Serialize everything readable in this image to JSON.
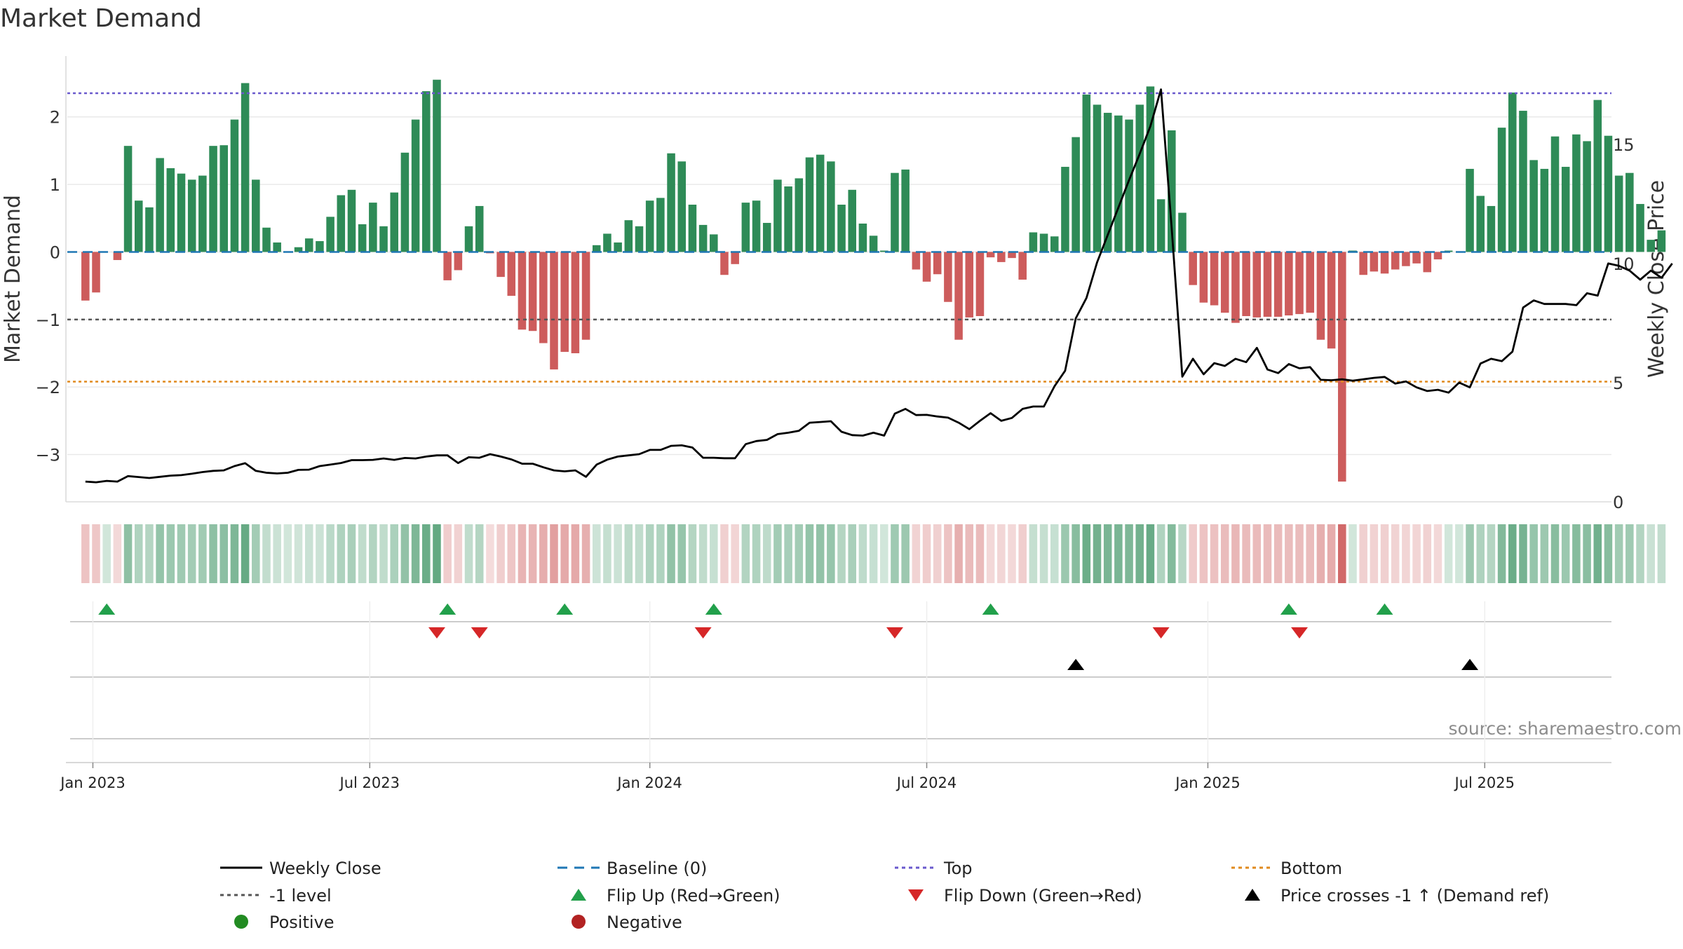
{
  "chart_data": {
    "type": "bar",
    "title": "Market Demand",
    "ylabel_left": "Market Demand",
    "ylabel_right": "Weekly Close Price",
    "source": "source: sharemaestro.com",
    "ylim_left": [
      -3.7,
      2.9
    ],
    "ylim_right": [
      0,
      18.7
    ],
    "yticks_left": [
      2,
      1,
      0,
      -1,
      -2,
      -3
    ],
    "ytick_labels_left": [
      "2",
      "1",
      "0",
      "−1",
      "−2",
      "−3"
    ],
    "yticks_right": [
      15,
      10,
      5,
      0
    ],
    "ytick_labels_right": [
      "15",
      "10",
      "5",
      "0"
    ],
    "x_start_week": -1.7,
    "x_end_week": 143.3,
    "xticks": [
      {
        "week": 0.7,
        "label": "Jan 2023"
      },
      {
        "week": 26.7,
        "label": "Jul 2023"
      },
      {
        "week": 53.0,
        "label": "Jan 2024"
      },
      {
        "week": 79.0,
        "label": "Jul 2024"
      },
      {
        "week": 105.4,
        "label": "Jan 2025"
      },
      {
        "week": 131.4,
        "label": "Jul 2025"
      }
    ],
    "levels": {
      "top": 2.35,
      "minus_one": -1.0,
      "bottom": -1.92,
      "baseline": 0
    },
    "demand": [
      -0.72,
      -0.6,
      0.0,
      -0.12,
      1.57,
      0.76,
      0.66,
      1.39,
      1.24,
      1.16,
      1.07,
      1.13,
      1.57,
      1.58,
      1.96,
      2.5,
      1.07,
      0.36,
      0.14,
      0.0,
      0.07,
      0.2,
      0.16,
      0.52,
      0.84,
      0.92,
      0.41,
      0.73,
      0.38,
      0.88,
      1.47,
      1.96,
      2.38,
      2.55,
      -0.42,
      -0.27,
      0.38,
      0.68,
      -0.02,
      -0.37,
      -0.65,
      -1.15,
      -1.17,
      -1.35,
      -1.74,
      -1.48,
      -1.5,
      -1.3,
      0.1,
      0.27,
      0.14,
      0.47,
      0.38,
      0.76,
      0.8,
      1.46,
      1.34,
      0.7,
      0.4,
      0.26,
      -0.34,
      -0.18,
      0.73,
      0.76,
      0.43,
      1.07,
      0.97,
      1.09,
      1.4,
      1.44,
      1.34,
      0.7,
      0.92,
      0.42,
      0.24,
      0.02,
      1.17,
      1.22,
      -0.26,
      -0.44,
      -0.33,
      -0.74,
      -1.3,
      -0.97,
      -0.95,
      -0.08,
      -0.15,
      -0.09,
      -0.41,
      0.29,
      0.27,
      0.23,
      1.26,
      1.7,
      2.33,
      2.18,
      2.06,
      2.02,
      1.96,
      2.18,
      2.45,
      0.78,
      1.8,
      0.58,
      -0.49,
      -0.75,
      -0.79,
      -0.9,
      -1.05,
      -0.95,
      -0.97,
      -0.96,
      -0.96,
      -0.94,
      -0.92,
      -0.9,
      -1.3,
      -1.43,
      -3.4,
      0.02,
      -0.34,
      -0.29,
      -0.32,
      -0.26,
      -0.21,
      -0.17,
      -0.3,
      -0.11,
      0.02,
      0.0,
      1.23,
      0.83,
      0.68,
      1.84,
      2.36,
      2.09,
      1.36,
      1.23,
      1.71,
      1.26,
      1.74,
      1.64,
      2.25,
      1.72,
      1.13,
      1.17,
      0.71,
      0.18,
      0.32
    ],
    "close_price": [
      0.85,
      0.82,
      0.88,
      0.85,
      1.08,
      1.04,
      1.0,
      1.05,
      1.1,
      1.12,
      1.18,
      1.25,
      1.3,
      1.32,
      1.5,
      1.62,
      1.3,
      1.22,
      1.19,
      1.22,
      1.34,
      1.35,
      1.5,
      1.56,
      1.63,
      1.75,
      1.75,
      1.76,
      1.82,
      1.76,
      1.84,
      1.82,
      1.9,
      1.95,
      1.95,
      1.63,
      1.87,
      1.85,
      2.0,
      1.9,
      1.78,
      1.6,
      1.6,
      1.45,
      1.32,
      1.28,
      1.32,
      1.05,
      1.56,
      1.77,
      1.9,
      1.95,
      2.0,
      2.18,
      2.18,
      2.35,
      2.37,
      2.28,
      1.85,
      1.85,
      1.83,
      1.83,
      2.42,
      2.55,
      2.6,
      2.84,
      2.9,
      2.98,
      3.32,
      3.35,
      3.38,
      2.94,
      2.8,
      2.78,
      2.9,
      2.78,
      3.7,
      3.9,
      3.64,
      3.65,
      3.58,
      3.53,
      3.32,
      3.05,
      3.4,
      3.72,
      3.4,
      3.52,
      3.9,
      4.0,
      4.0,
      4.85,
      5.5,
      7.7,
      8.55,
      10.05,
      11.2,
      12.35,
      13.5,
      14.6,
      15.75,
      17.3,
      11.5,
      5.25,
      6.0,
      5.35,
      5.82,
      5.7,
      6.0,
      5.86,
      6.46,
      5.55,
      5.4,
      5.78,
      5.6,
      5.65,
      5.12,
      5.1,
      5.14,
      5.08,
      5.14,
      5.2,
      5.24,
      4.96,
      5.05,
      4.8,
      4.65,
      4.7,
      4.58,
      5.0,
      4.8,
      5.8,
      6.0,
      5.9,
      6.3,
      8.15,
      8.45,
      8.3,
      8.3,
      8.3,
      8.25,
      8.75,
      8.65,
      10.0,
      9.9,
      9.7,
      9.32,
      9.7,
      9.4,
      10.0
    ],
    "flip_up_weeks": [
      2,
      34,
      45,
      59,
      85,
      113,
      122
    ],
    "flip_down_weeks": [
      33,
      37,
      58,
      76,
      101,
      114
    ],
    "price_cross_weeks": [
      93,
      130
    ],
    "legend_position": "bottom",
    "legend": [
      {
        "label": "Weekly Close",
        "marker": "solid-line",
        "color": "#000000"
      },
      {
        "label": "Baseline (0)",
        "marker": "dashed-line",
        "color": "#1f77b4"
      },
      {
        "label": "Top",
        "marker": "dotted-line",
        "color": "#6a5acd"
      },
      {
        "label": "Bottom",
        "marker": "dotted-line",
        "color": "#e08a1e"
      },
      {
        "label": "-1 level",
        "marker": "dotted-line",
        "color": "#555555"
      },
      {
        "label": "Flip Up (Red→Green)",
        "marker": "triangle-up",
        "color": "#22a04b"
      },
      {
        "label": "Flip Down (Green→Red)",
        "marker": "triangle-down",
        "color": "#d62728"
      },
      {
        "label": "Price crosses -1 ↑ (Demand ref)",
        "marker": "triangle-up",
        "color": "#000000"
      },
      {
        "label": "Positive",
        "marker": "circle",
        "color": "#228b22"
      },
      {
        "label": "Negative",
        "marker": "circle",
        "color": "#b22222"
      }
    ]
  },
  "colors": {
    "positive_bar": "#2e8b57",
    "negative_bar": "#cd5c5c",
    "heat_positive": "#2e8b57",
    "heat_negative": "#cd5c5c",
    "close_line": "#000000",
    "baseline": "#1f77b4",
    "top_line": "#6a5acd",
    "bottom_line": "#e08a1e",
    "minus_one_line": "#555555",
    "flip_up": "#22a04b",
    "flip_down": "#d62728",
    "price_cross": "#000000"
  }
}
